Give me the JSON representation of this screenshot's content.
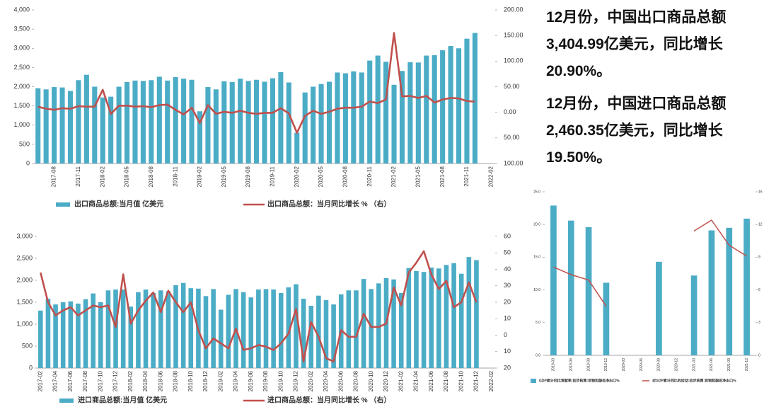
{
  "chart_data": [
    {
      "type": "bar",
      "categories": [
        null,
        null,
        "2017-08",
        null,
        null,
        "2017-11",
        null,
        null,
        "2018-02",
        null,
        null,
        "2018-05",
        null,
        null,
        "2018-08",
        null,
        null,
        "2018-11",
        null,
        null,
        "2019-02",
        null,
        null,
        "2019-05",
        null,
        null,
        "2019-08",
        null,
        null,
        "2019-11",
        null,
        null,
        "2020-02",
        null,
        null,
        "2020-05",
        null,
        null,
        "2020-08",
        null,
        null,
        "2020-11",
        null,
        null,
        "2021-02",
        null,
        null,
        "2021-05",
        null,
        null,
        "2021-08",
        null,
        null,
        "2021-11",
        null,
        null,
        "2022-02"
      ],
      "series": [
        {
          "name": "出口商品总额:当月值 亿美元",
          "type": "bar",
          "color": "#4bacc6",
          "axis": "y",
          "values": [
            1960,
            1930,
            1990,
            1980,
            1890,
            2170,
            2310,
            2000,
            1720,
            1740,
            2000,
            2120,
            2160,
            2150,
            2170,
            2260,
            2160,
            2250,
            2210,
            2180,
            1360,
            1990,
            1930,
            2140,
            2120,
            2210,
            2150,
            2180,
            2130,
            2220,
            2380,
            2110,
            800,
            1850,
            2000,
            2070,
            2130,
            2370,
            2350,
            2400,
            2370,
            2680,
            2810,
            2650,
            2050,
            2410,
            2640,
            2630,
            2810,
            2820,
            2950,
            3060,
            3000,
            3250,
            3400,
            null,
            null
          ]
        },
        {
          "name": "出口商品总额：当月同比增长 %  （右）",
          "type": "line",
          "color": "#c0504d",
          "axis": "y2",
          "values": [
            11,
            7,
            5,
            8,
            7,
            12,
            11,
            11,
            44,
            -3,
            13,
            13,
            11,
            12,
            10,
            14,
            15,
            5,
            -4,
            9,
            -21,
            14,
            -3,
            1,
            -1,
            3,
            -1,
            -3,
            -1,
            -1,
            8,
            -2,
            -40,
            -7,
            3,
            -3,
            1,
            7,
            9,
            9,
            11,
            21,
            18,
            25,
            155,
            31,
            32,
            28,
            32,
            19,
            25,
            28,
            27,
            22,
            21,
            null,
            null
          ]
        }
      ],
      "ylim": [
        0,
        4000
      ],
      "yticks": [
        0,
        {
          "value": 500,
          "label": "500"
        },
        {
          "value": 1000,
          "label": "1,000"
        },
        {
          "value": 1500,
          "label": "1,500"
        },
        {
          "value": 2000,
          "label": "2,000"
        },
        {
          "value": 2500,
          "label": "2,500"
        },
        {
          "value": 3000,
          "label": "3,000"
        },
        {
          "value": 3500,
          "label": "3,500"
        },
        {
          "value": 4000,
          "label": "4,000"
        }
      ],
      "y2lim": [
        -100,
        200
      ],
      "y2ticks": [
        {
          "value": -100,
          "label": "100.00"
        },
        {
          "value": -50,
          "label": "50.00"
        },
        {
          "value": 0,
          "label": "0.00"
        },
        {
          "value": 50,
          "label": "50.00"
        },
        {
          "value": 100,
          "label": "100.00"
        },
        {
          "value": 150,
          "label": "150.00"
        },
        {
          "value": 200,
          "label": "200.00"
        }
      ]
    },
    {
      "type": "bar",
      "categories": [
        "2017-02",
        null,
        "2017-04",
        null,
        "2017-06",
        null,
        "2017-08",
        null,
        "2017-10",
        null,
        "2017-12",
        null,
        "2018-02",
        null,
        "2018-04",
        null,
        "2018-06",
        null,
        "2018-08",
        null,
        "2018-10",
        null,
        "2018-12",
        null,
        "2019-02",
        null,
        "2019-04",
        null,
        "2019-06",
        null,
        "2019-08",
        null,
        "2019-10",
        null,
        "2019-12",
        null,
        "2020-02",
        null,
        "2020-04",
        null,
        "2020-06",
        null,
        "2020-08",
        null,
        "2020-10",
        null,
        "2020-12",
        null,
        "2021-02",
        null,
        "2021-04",
        null,
        "2021-06",
        null,
        "2021-08",
        null,
        "2021-10",
        null,
        "2021-12",
        null,
        "2022-02"
      ],
      "series": [
        {
          "name": "进口商品总额:当月值 亿美元",
          "type": "bar",
          "color": "#4bacc6",
          "axis": "y",
          "values": [
            1310,
            1580,
            1450,
            1500,
            1520,
            1470,
            1570,
            1700,
            1500,
            1770,
            1790,
            1790,
            1400,
            1730,
            1790,
            1710,
            1770,
            1750,
            1890,
            1940,
            1820,
            1810,
            1640,
            1800,
            1330,
            1670,
            1800,
            1730,
            1610,
            1790,
            1800,
            1790,
            1710,
            1840,
            1910,
            1580,
            1420,
            1650,
            1550,
            1450,
            1680,
            1770,
            1770,
            2030,
            1800,
            1930,
            2050,
            2020,
            1710,
            2280,
            2210,
            2190,
            2290,
            2270,
            2350,
            2390,
            2150,
            2530,
            2460,
            null,
            null
          ]
        },
        {
          "name": "进口商品总额：当月同比增长 %  （右）",
          "type": "line",
          "color": "#c0504d",
          "axis": "y2",
          "values": [
            38,
            20,
            12,
            15,
            17,
            12,
            15,
            18,
            17,
            18,
            5,
            37,
            7,
            15,
            21,
            26,
            14,
            27,
            20,
            14,
            20,
            3,
            -8,
            -2,
            -5,
            -8,
            4,
            -9,
            -8,
            -6,
            -7,
            -9,
            -5,
            1,
            16,
            -16,
            8,
            -1,
            -14,
            -16,
            3,
            -1,
            -1,
            13,
            5,
            5,
            7,
            29,
            18,
            38,
            44,
            51,
            37,
            28,
            33,
            17,
            20,
            32,
            20,
            null,
            null
          ]
        }
      ],
      "ylim": [
        0,
        3000
      ],
      "yticks": [
        0,
        500,
        {
          "value": 1000,
          "label": "1,000"
        },
        {
          "value": 1500,
          "label": "1,500"
        },
        {
          "value": 2000,
          "label": "2,000"
        },
        {
          "value": 2500,
          "label": "2,500"
        },
        {
          "value": 3000,
          "label": "3,000"
        }
      ],
      "y2lim": [
        -20,
        60
      ],
      "y2ticks": [
        {
          "value": -20,
          "label": "20"
        },
        {
          "value": -10,
          "label": "10"
        },
        0,
        10,
        20,
        30,
        40,
        50,
        60
      ]
    },
    {
      "type": "bar",
      "categories": [
        "2019-03",
        "2019-06",
        "2019-09",
        "2019-12",
        "2020-03",
        "2020-06",
        "2020-09",
        "2020-12",
        "2021-03",
        "2021-06",
        "2021-09",
        "2021-12"
      ],
      "series": [
        {
          "name": "GDP累计同比贡献率:初步核算:货物和服务净出口%",
          "type": "bar",
          "color": "#4bacc6",
          "axis": "y",
          "values": [
            22.9,
            20.6,
            19.6,
            11.1,
            null,
            null,
            14.3,
            null,
            12.2,
            19.1,
            19.5,
            20.9
          ]
        },
        {
          "name": "对GDP累计同比的拉动:初步核算:货物和服务净出口%",
          "type": "line",
          "color": "#c0504d",
          "axis": "y2",
          "values": [
            8.1,
            7.4,
            6.9,
            4.5,
            null,
            null,
            null,
            null,
            11.4,
            12.4,
            10.1,
            9.1
          ]
        }
      ],
      "ylim": [
        0,
        25
      ],
      "yticks": [
        {
          "value": 0,
          "label": "0.0"
        },
        {
          "value": 5,
          "label": "5.0"
        },
        {
          "value": 10,
          "label": "10.0"
        },
        {
          "value": 15,
          "label": "15.0"
        },
        {
          "value": 20,
          "label": "20.0"
        },
        {
          "value": 25,
          "label": "25.0"
        }
      ],
      "y2lim": [
        0,
        15
      ],
      "y2ticks": [
        0,
        3,
        6,
        9,
        12,
        15
      ]
    }
  ],
  "text": [
    [
      "12月份，中国出口商品总额",
      "3,404.99亿美元，同比增长",
      "20.90%。"
    ],
    [
      "12月份，中国进口商品总额",
      "2,460.35亿美元，同比增长",
      "19.50%。"
    ]
  ]
}
